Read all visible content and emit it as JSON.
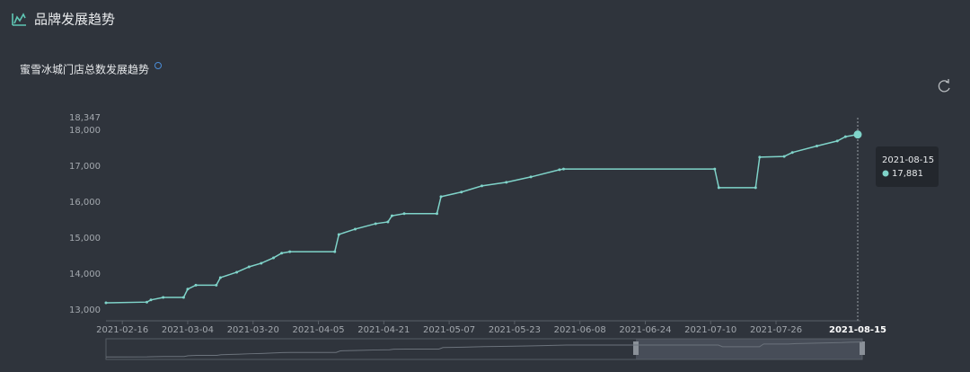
{
  "header": {
    "title": "品牌发展趋势"
  },
  "chart_data": {
    "type": "line",
    "title": "蜜雪冰城门店总数发展趋势",
    "x": [
      "2021-02-12",
      "2021-02-22",
      "2021-02-23",
      "2021-02-26",
      "2021-03-03",
      "2021-03-04",
      "2021-03-06",
      "2021-03-11",
      "2021-03-12",
      "2021-03-16",
      "2021-03-19",
      "2021-03-22",
      "2021-03-25",
      "2021-03-27",
      "2021-03-29",
      "2021-04-09",
      "2021-04-10",
      "2021-04-14",
      "2021-04-19",
      "2021-04-22",
      "2021-04-23",
      "2021-04-26",
      "2021-05-04",
      "2021-05-05",
      "2021-05-10",
      "2021-05-15",
      "2021-05-21",
      "2021-05-27",
      "2021-06-03",
      "2021-06-04",
      "2021-07-11",
      "2021-07-12",
      "2021-07-21",
      "2021-07-22",
      "2021-07-28",
      "2021-07-30",
      "2021-08-05",
      "2021-08-10",
      "2021-08-12",
      "2021-08-15"
    ],
    "series": [
      {
        "name": "门店总数",
        "color": "#7fd3c9",
        "values": [
          13200,
          13220,
          13280,
          13350,
          13350,
          13580,
          13690,
          13690,
          13900,
          14050,
          14200,
          14300,
          14450,
          14580,
          14620,
          14620,
          15100,
          15250,
          15400,
          15450,
          15620,
          15680,
          15680,
          16150,
          16280,
          16450,
          16550,
          16700,
          16900,
          16920,
          16920,
          16400,
          16400,
          17250,
          17270,
          17380,
          17560,
          17700,
          17820,
          17881
        ]
      }
    ],
    "xlim": [
      "2021-02-12",
      "2021-08-15"
    ],
    "xticks": [
      "2021-02-16",
      "2021-03-04",
      "2021-03-20",
      "2021-04-05",
      "2021-04-21",
      "2021-05-07",
      "2021-05-23",
      "2021-06-08",
      "2021-06-24",
      "2021-07-10",
      "2021-07-26"
    ],
    "ylim": [
      12700,
      18347
    ],
    "yticks": [
      {
        "value": 13000,
        "label": "13,000"
      },
      {
        "value": 14000,
        "label": "14,000"
      },
      {
        "value": 15000,
        "label": "15,000"
      },
      {
        "value": 16000,
        "label": "16,000"
      },
      {
        "value": 17000,
        "label": "17,000"
      },
      {
        "value": 18000,
        "label": "18,000"
      },
      {
        "value": 18347,
        "label": "18,347"
      }
    ],
    "grid": false,
    "pointer": {
      "x": "2021-08-15",
      "value": 17881,
      "label": "17,881"
    }
  }
}
